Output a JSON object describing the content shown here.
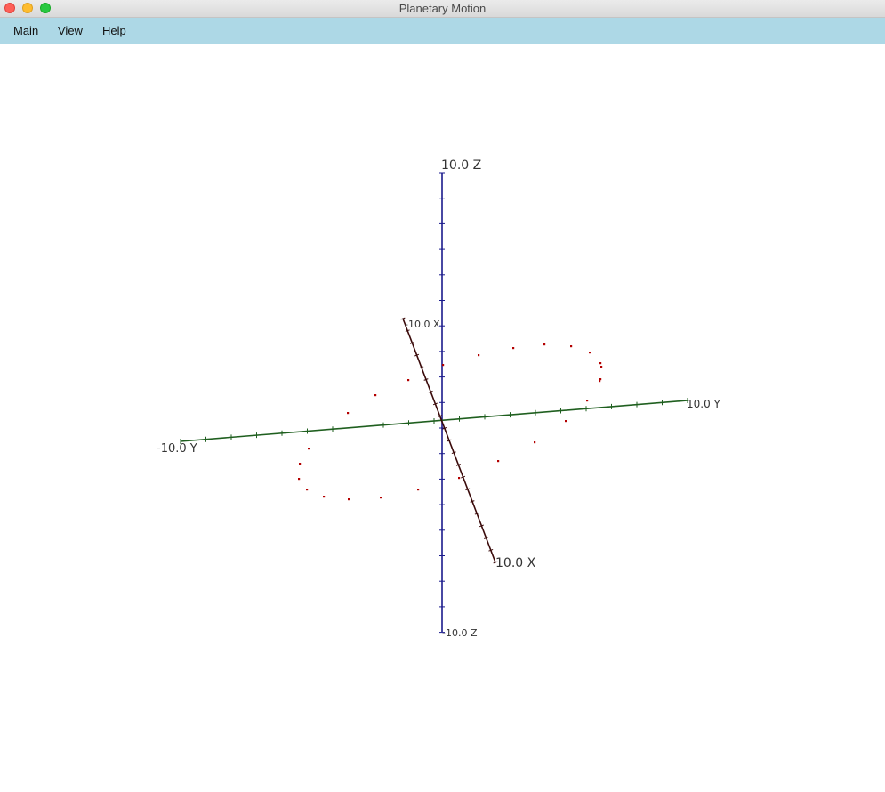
{
  "window": {
    "title": "Planetary Motion"
  },
  "menu": {
    "items": [
      "Main",
      "View",
      "Help"
    ]
  },
  "scene": {
    "axes": {
      "z_pos_label": "10.0 Z",
      "z_neg_label": "-10.0 Z",
      "y_pos_label": "10.0 Y",
      "y_neg_label": "-10.0 Y",
      "x_pos_label": "10.0 X",
      "x_neg_label": "-10.0 X"
    },
    "colors": {
      "z_axis": "#1a1a8c",
      "y_axis": "#1f5f1f",
      "x_axis": "#3a0a0a",
      "orbit_points": "#b30000"
    }
  }
}
